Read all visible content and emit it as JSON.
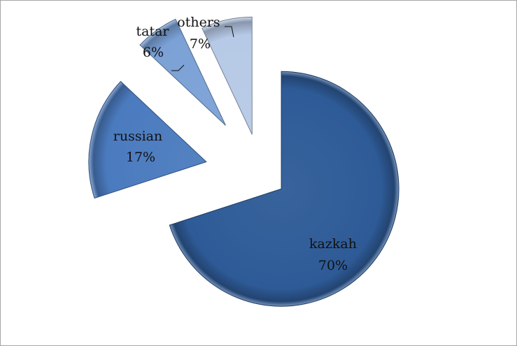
{
  "chart_data": {
    "type": "pie",
    "exploded": true,
    "style": "3d-beveled",
    "slices": [
      {
        "label": "kazkah",
        "percent_label": "70%",
        "value": 70,
        "color": "#2e5b97"
      },
      {
        "label": "russian",
        "percent_label": "17%",
        "value": 17,
        "color": "#4b7bbf"
      },
      {
        "label": "tatar",
        "percent_label": "6%",
        "value": 6,
        "color": "#7ba1d6"
      },
      {
        "label": "others",
        "percent_label": "7%",
        "value": 7,
        "color": "#b6c9e6"
      }
    ]
  }
}
